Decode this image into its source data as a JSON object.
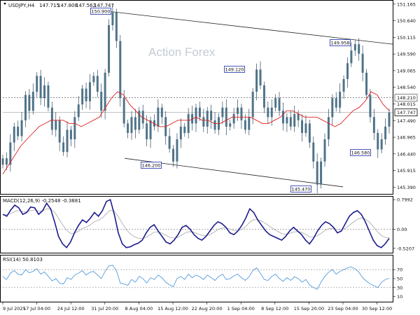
{
  "chart_data": {
    "type": "candlestick",
    "symbol_header": {
      "symbol": "USDJPY,H4",
      "open": "147.715",
      "high": "147.808",
      "low": "147.562",
      "close": "147.747"
    },
    "watermark": "Action Forex",
    "x_tick_labels": [
      "9 Jul 2025",
      "17 Jul 04:00",
      "24 Jul 12:00",
      "31 Jul 20:00",
      "8 Aug 04:00",
      "15 Aug 12:00",
      "22 Aug 20:00",
      "1 Sep 04:00",
      "8 Sep 12:00",
      "15 Sep 20:00",
      "23 Sep 04:00",
      "30 Sep 12:00"
    ],
    "price_panel": {
      "ylim": [
        145.2,
        151.25
      ],
      "y_ticks": [
        "151.165",
        "150.640",
        "150.115",
        "149.590",
        "149.065",
        "148.540",
        "148.015",
        "147.490",
        "146.965",
        "146.440",
        "145.915",
        "145.390"
      ],
      "current_price": "147.747",
      "reference_level": "148.210",
      "series_close": [
        146.3,
        146.1,
        146.8,
        147.3,
        147.0,
        147.5,
        148.3,
        147.8,
        148.4,
        148.9,
        148.2,
        148.6,
        147.9,
        147.2,
        147.5,
        146.8,
        146.5,
        147.2,
        146.9,
        147.6,
        148.0,
        148.5,
        148.1,
        148.7,
        148.9,
        148.4,
        147.8,
        149.0,
        150.5,
        150.9,
        150.0,
        148.2,
        147.4,
        147.1,
        147.6,
        147.2,
        147.8,
        147.4,
        146.9,
        147.5,
        147.3,
        147.9,
        147.6,
        147.0,
        146.6,
        146.2,
        146.9,
        147.3,
        147.1,
        147.7,
        147.4,
        147.9,
        147.6,
        147.3,
        147.8,
        147.5,
        147.2,
        147.6,
        147.9,
        147.3,
        147.4,
        147.7,
        147.9,
        147.5,
        147.2,
        147.6,
        148.4,
        149.1,
        148.6,
        147.9,
        147.6,
        147.9,
        148.2,
        147.8,
        147.4,
        147.6,
        147.3,
        147.7,
        147.5,
        147.1,
        147.4,
        146.8,
        146.2,
        145.47,
        146.2,
        146.9,
        147.6,
        148.2,
        147.9,
        148.4,
        148.8,
        149.3,
        149.7,
        149.9,
        149.6,
        149.0,
        148.3,
        147.6,
        147.1,
        146.58,
        146.9,
        147.3,
        147.747
      ],
      "ma_values": [
        145.8,
        146.1,
        146.4,
        146.7,
        146.9,
        147.1,
        147.3,
        147.4,
        147.5,
        147.5,
        147.5,
        147.4,
        147.4,
        147.3,
        147.4,
        147.5,
        147.6,
        147.9,
        148.2,
        148.4,
        148.3,
        148.0,
        147.8,
        147.6,
        147.5,
        147.4,
        147.3,
        147.3,
        147.4,
        147.5,
        147.5,
        147.5,
        147.6,
        147.5,
        147.5,
        147.4,
        147.4,
        147.5,
        147.6,
        147.6,
        147.6,
        147.6,
        147.5,
        147.4,
        147.4,
        147.5,
        147.6,
        147.8,
        147.8,
        147.7,
        147.6,
        147.6,
        147.6,
        147.5,
        147.4,
        147.3,
        147.4,
        147.6,
        147.8,
        147.9,
        148.1,
        148.4,
        148.3,
        148.0,
        147.8
      ],
      "annotations": [
        {
          "label": "150.900",
          "value": 150.9
        },
        {
          "label": "146.200",
          "value": 146.2
        },
        {
          "label": "149.120",
          "value": 149.12
        },
        {
          "label": "145.470",
          "value": 145.47
        },
        {
          "label": "149.958",
          "value": 149.958
        },
        {
          "label": "146.580",
          "value": 146.58
        }
      ],
      "channel_upper": {
        "from": 150.95,
        "to": 149.9
      },
      "channel_lower": {
        "from": 146.3,
        "to": 145.4
      }
    },
    "macd_panel": {
      "header": "MACD(12,26,9) -0.2548 -0.3881",
      "ylim": [
        -0.62,
        0.86
      ],
      "y_ticks": [
        "0.7992",
        "0.00",
        "-0.5207"
      ],
      "macd": [
        0.4,
        0.35,
        0.52,
        0.65,
        0.58,
        0.4,
        0.45,
        0.6,
        0.58,
        0.4,
        0.5,
        0.7,
        0.55,
        0.2,
        -0.2,
        -0.4,
        -0.5,
        -0.35,
        -0.1,
        0.1,
        0.25,
        0.18,
        0.3,
        0.45,
        0.35,
        0.5,
        0.75,
        0.8,
        0.4,
        -0.1,
        -0.4,
        -0.5,
        -0.48,
        -0.42,
        -0.38,
        -0.3,
        -0.1,
        0.05,
        0.12,
        -0.05,
        -0.2,
        -0.35,
        -0.4,
        -0.3,
        -0.15,
        0.05,
        0.1,
        0.0,
        -0.15,
        -0.25,
        -0.3,
        -0.2,
        -0.05,
        0.1,
        0.2,
        0.15,
        0.05,
        -0.1,
        -0.15,
        -0.05,
        0.1,
        0.3,
        0.55,
        0.45,
        0.25,
        0.1,
        -0.05,
        -0.15,
        -0.2,
        -0.25,
        -0.3,
        -0.2,
        -0.05,
        0.05,
        -0.05,
        -0.15,
        -0.3,
        -0.4,
        -0.25,
        -0.05,
        0.1,
        0.2,
        0.15,
        0.05,
        -0.1,
        -0.05,
        0.15,
        0.35,
        0.45,
        0.5,
        0.4,
        0.2,
        -0.05,
        -0.3,
        -0.45,
        -0.5,
        -0.4,
        -0.25
      ]
    },
    "rsi_panel": {
      "header": "RSI(14) 50.8103",
      "ylim": [
        0,
        100
      ],
      "y_ticks": [
        "70",
        "50",
        "30",
        "10"
      ],
      "rsi": [
        55,
        48,
        62,
        68,
        60,
        58,
        70,
        63,
        66,
        72,
        60,
        65,
        55,
        45,
        50,
        40,
        38,
        52,
        48,
        58,
        62,
        68,
        58,
        64,
        66,
        58,
        50,
        66,
        78,
        80,
        68,
        40,
        38,
        35,
        48,
        42,
        55,
        50,
        40,
        52,
        48,
        58,
        52,
        42,
        36,
        32,
        50,
        55,
        48,
        60,
        52,
        58,
        54,
        48,
        58,
        52,
        46,
        55,
        60,
        48,
        50,
        56,
        60,
        52,
        46,
        54,
        68,
        74,
        62,
        48,
        46,
        55,
        60,
        50,
        44,
        52,
        46,
        54,
        50,
        42,
        48,
        36,
        30,
        26,
        42,
        55,
        64,
        70,
        60,
        66,
        70,
        74,
        76,
        72,
        64,
        52,
        44,
        38,
        34,
        30,
        42,
        48,
        50.81
      ]
    }
  }
}
